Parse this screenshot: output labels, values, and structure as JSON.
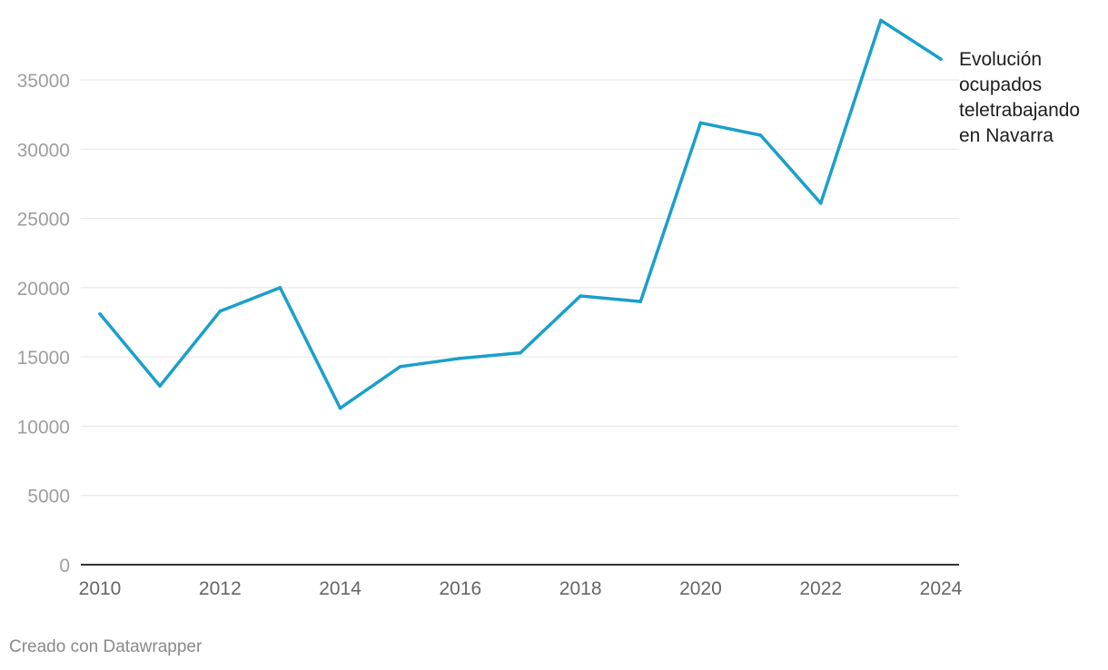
{
  "chart_data": {
    "type": "line",
    "title": "",
    "xlabel": "",
    "ylabel": "",
    "x": [
      2010,
      2011,
      2012,
      2013,
      2014,
      2015,
      2016,
      2017,
      2018,
      2019,
      2020,
      2021,
      2022,
      2023,
      2024
    ],
    "series": [
      {
        "name": "Evolución ocupados teletrabajando en Navarra",
        "label_lines": [
          "Evolución",
          "ocupados",
          "teletrabajando",
          "en Navarra"
        ],
        "color": "#1a9fcc",
        "values": [
          18100,
          12900,
          18300,
          20000,
          11300,
          14300,
          14900,
          15300,
          19400,
          19000,
          31900,
          31000,
          26100,
          39300,
          36500
        ]
      }
    ],
    "xlim": [
      2010,
      2024
    ],
    "ylim": [
      0,
      39300
    ],
    "x_ticks": [
      "2010",
      "2012",
      "2014",
      "2016",
      "2018",
      "2020",
      "2022",
      "2024"
    ],
    "y_ticks": [
      "0",
      "5000",
      "10000",
      "15000",
      "20000",
      "25000",
      "30000",
      "35000"
    ],
    "grid": true,
    "legend": "end-of-line label"
  },
  "footer": {
    "credit": "Creado con Datawrapper"
  }
}
